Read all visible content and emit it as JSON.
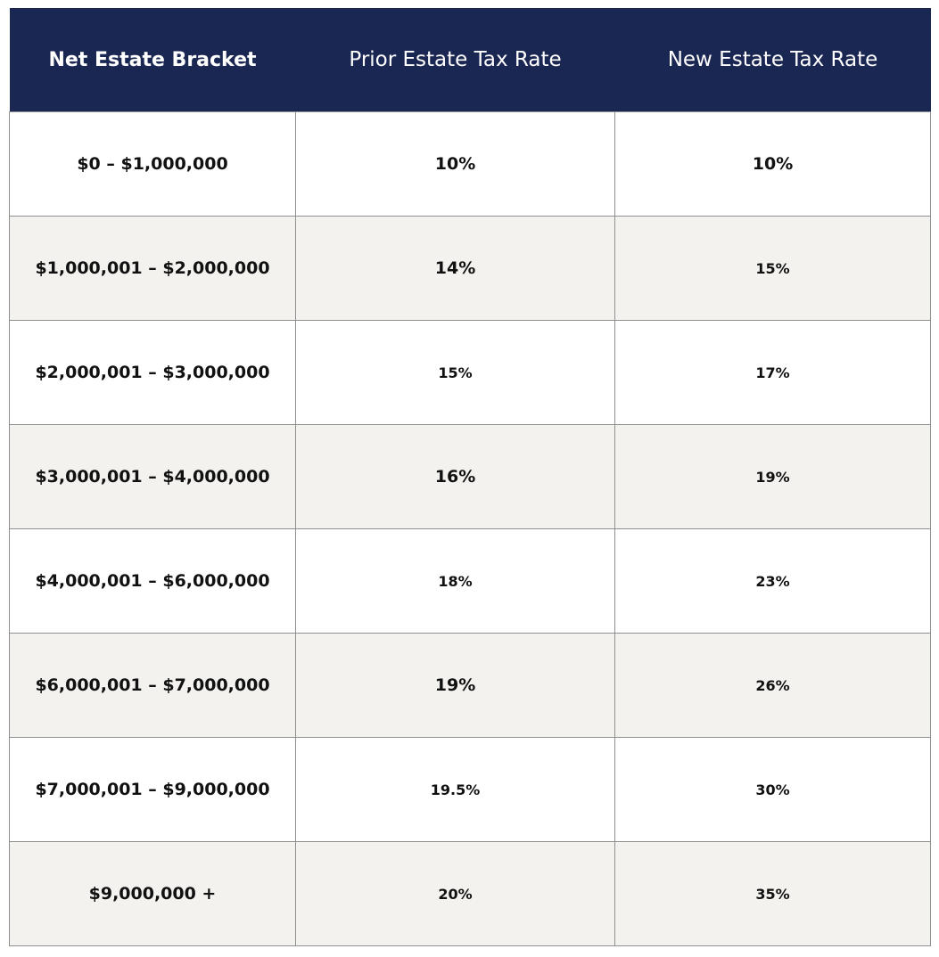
{
  "table": {
    "headers": [
      "Net Estate Bracket",
      "Prior Estate Tax Rate",
      "New Estate Tax Rate"
    ],
    "rows": [
      {
        "bracket": "$0 – $1,000,000",
        "prior": "10%",
        "new": "10%"
      },
      {
        "bracket": "$1,000,001 – $2,000,000",
        "prior": "14%",
        "new": "15%"
      },
      {
        "bracket": "$2,000,001 – $3,000,000",
        "prior": "15%",
        "new": "17%"
      },
      {
        "bracket": "$3,000,001 – $4,000,000",
        "prior": "16%",
        "new": "19%"
      },
      {
        "bracket": "$4,000,001 – $6,000,000",
        "prior": "18%",
        "new": "23%"
      },
      {
        "bracket": "$6,000,001 – $7,000,000",
        "prior": "19%",
        "new": "26%"
      },
      {
        "bracket": "$7,000,001 – $9,000,000",
        "prior": "19.5%",
        "new": "30%"
      },
      {
        "bracket": "$9,000,000 +",
        "prior": "20%",
        "new": "35%"
      }
    ]
  },
  "colors": {
    "header_bg": "#1b2753",
    "header_text": "#ffffff",
    "alt_row_bg": "#f3f2ee",
    "border": "#8f8f8f"
  }
}
